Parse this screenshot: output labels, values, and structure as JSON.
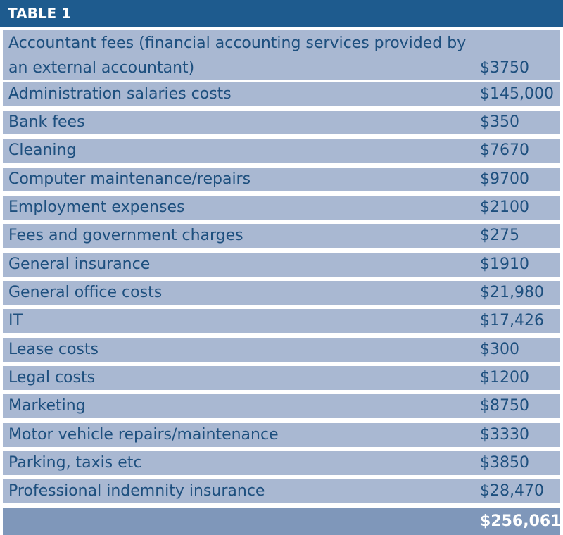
{
  "table": {
    "title": "TABLE 1",
    "rows": [
      {
        "label": "Accountant fees (financial accounting services provided by an external accountant)",
        "value": "$3750"
      },
      {
        "label": "Administration salaries costs",
        "value": "$145,000"
      },
      {
        "label": "Bank fees",
        "value": "$350"
      },
      {
        "label": "Cleaning",
        "value": "$7670"
      },
      {
        "label": "Computer maintenance/repairs",
        "value": "$9700"
      },
      {
        "label": "Employment expenses",
        "value": "$2100"
      },
      {
        "label": "Fees and government charges",
        "value": "$275"
      },
      {
        "label": "General insurance",
        "value": "$1910"
      },
      {
        "label": "General office costs",
        "value": "$21,980"
      },
      {
        "label": "IT",
        "value": "$17,426"
      },
      {
        "label": "Lease costs",
        "value": "$300"
      },
      {
        "label": "Legal costs",
        "value": "$1200"
      },
      {
        "label": "Marketing",
        "value": "$8750"
      },
      {
        "label": "Motor vehicle repairs/maintenance",
        "value": "$3330"
      },
      {
        "label": "Parking, taxis etc",
        "value": "$3850"
      },
      {
        "label": "Professional indemnity insurance",
        "value": "$28,470"
      }
    ],
    "total": "$256,061"
  }
}
